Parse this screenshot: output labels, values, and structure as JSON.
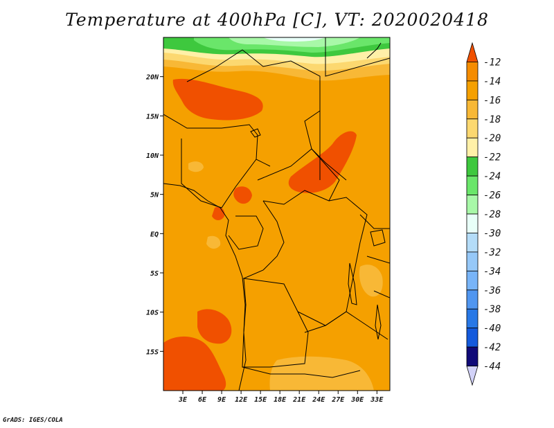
{
  "title": "Temperature at 400hPa [C], VT: 2020020418",
  "credit": "GrADS: IGES/COLA",
  "map": {
    "lon_range": [
      0,
      35
    ],
    "lat_range": [
      -20,
      25
    ],
    "lon_ticks": [
      {
        "value": 3,
        "label": "3E"
      },
      {
        "value": 6,
        "label": "6E"
      },
      {
        "value": 9,
        "label": "9E"
      },
      {
        "value": 12,
        "label": "12E"
      },
      {
        "value": 15,
        "label": "15E"
      },
      {
        "value": 18,
        "label": "18E"
      },
      {
        "value": 21,
        "label": "21E"
      },
      {
        "value": 24,
        "label": "24E"
      },
      {
        "value": 27,
        "label": "27E"
      },
      {
        "value": 30,
        "label": "30E"
      },
      {
        "value": 33,
        "label": "33E"
      }
    ],
    "lat_ticks": [
      {
        "value": 20,
        "label": "20N"
      },
      {
        "value": 15,
        "label": "15N"
      },
      {
        "value": 10,
        "label": "10N"
      },
      {
        "value": 5,
        "label": "5N"
      },
      {
        "value": 0,
        "label": "EQ"
      },
      {
        "value": -5,
        "label": "5S"
      },
      {
        "value": -10,
        "label": "10S"
      },
      {
        "value": -15,
        "label": "15S"
      }
    ],
    "background_color": "#f5a000"
  },
  "colorbar": {
    "labels": [
      "-12",
      "-14",
      "-16",
      "-18",
      "-20",
      "-22",
      "-24",
      "-26",
      "-28",
      "-30",
      "-32",
      "-34",
      "-36",
      "-38",
      "-40",
      "-42",
      "-44"
    ],
    "colors": [
      "#f05000",
      "#f58c00",
      "#f5a000",
      "#f8b836",
      "#fcd870",
      "#fff0a8",
      "#3ec83e",
      "#6ae66a",
      "#a8f8a8",
      "#e8fff8",
      "#b4dcf8",
      "#96c8f8",
      "#78b4f8",
      "#5096f0",
      "#2878e6",
      "#145adc",
      "#100a78",
      "#d2d2f8"
    ]
  }
}
